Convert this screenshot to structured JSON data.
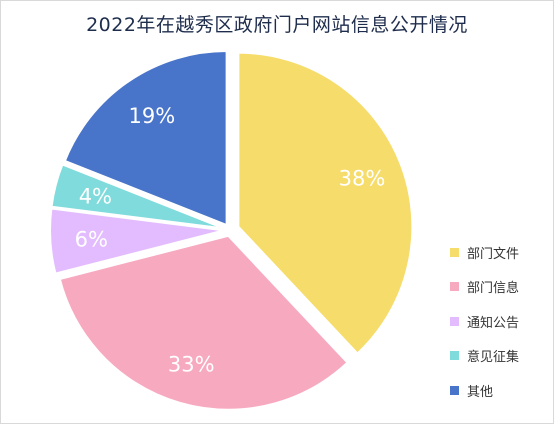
{
  "chart_data": {
    "type": "pie",
    "title": "2022年在越秀区政府门户网站信息公开情况",
    "slices": [
      {
        "name": "部门文件",
        "value": 38,
        "label": "38%",
        "color": "#f6dc6b"
      },
      {
        "name": "部门信息",
        "value": 33,
        "label": "33%",
        "color": "#f7a9c0"
      },
      {
        "name": "通知公告",
        "value": 6,
        "label": "6%",
        "color": "#e3bcff"
      },
      {
        "name": "意见征集",
        "value": 4,
        "label": "4%",
        "color": "#7fdbdc"
      },
      {
        "name": "其他",
        "value": 19,
        "label": "19%",
        "color": "#4874c9"
      }
    ],
    "legend_position": "right-bottom"
  }
}
